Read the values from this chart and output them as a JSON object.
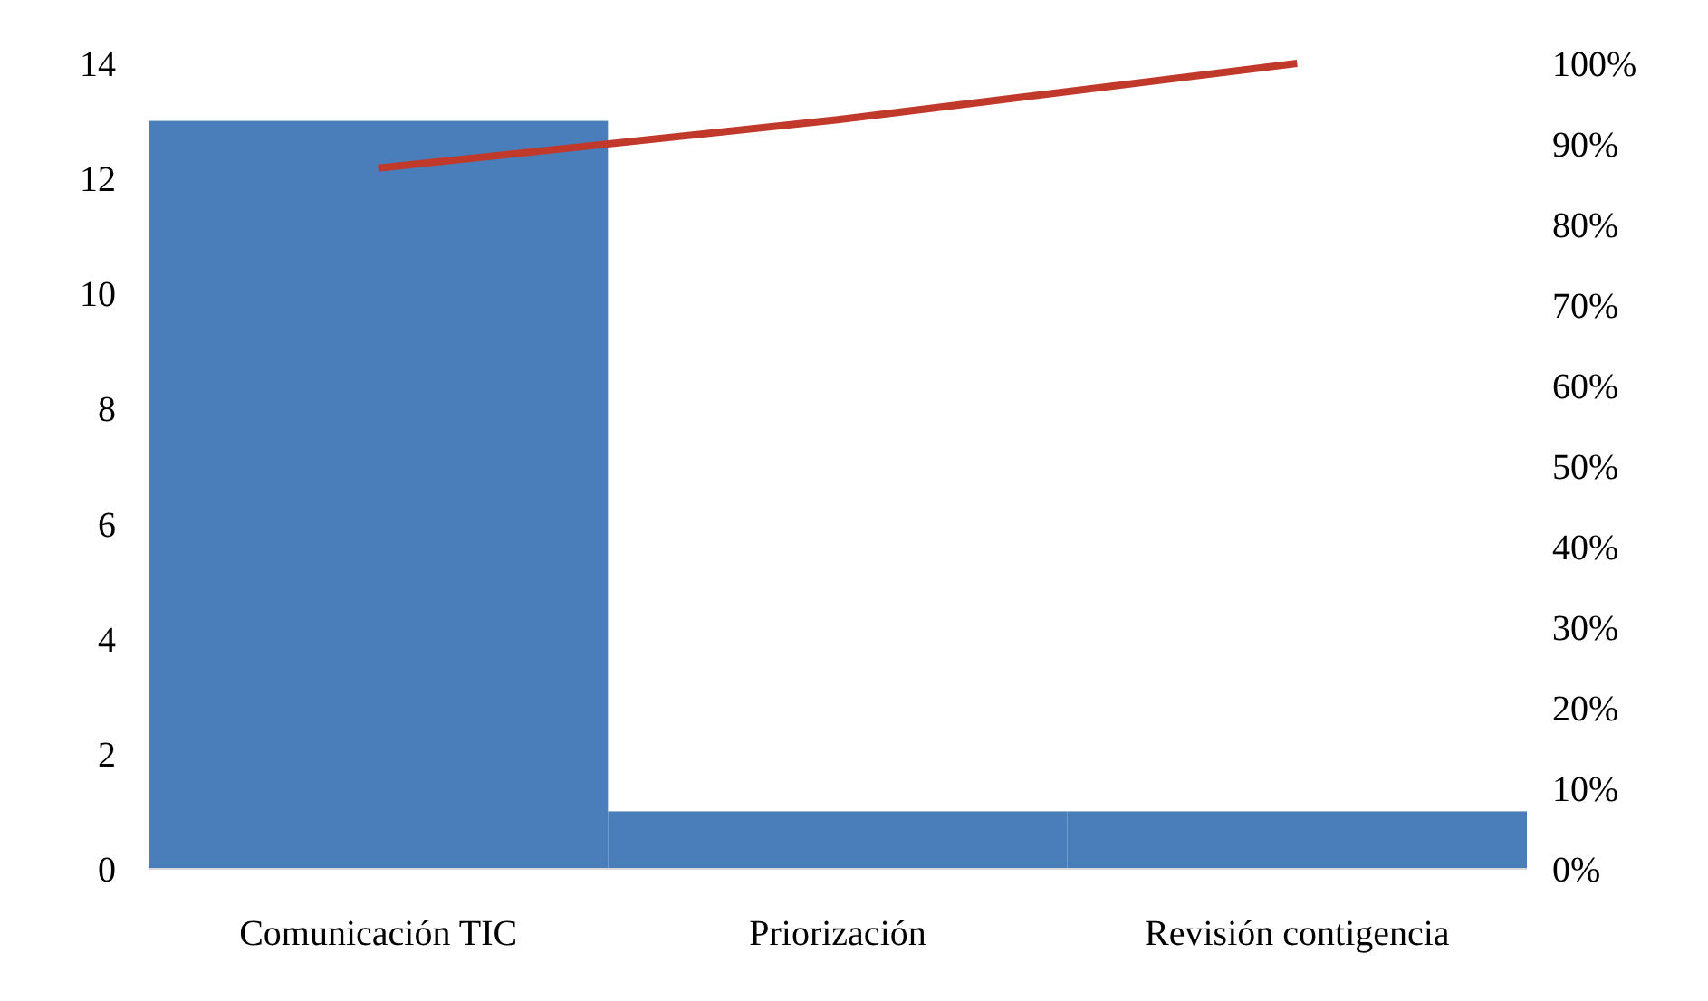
{
  "chart_data": {
    "type": "bar",
    "categories": [
      "Comunicación TIC",
      "Priorización",
      "Revisión contigencia"
    ],
    "series": [
      {
        "color": "#4a7ebb",
        "values": [
          13,
          1,
          1
        ]
      },
      {
        "type": "line",
        "axis": "y2",
        "color": "#c0392b",
        "values": [
          87,
          93,
          100
        ]
      }
    ],
    "ylim": [
      0,
      14
    ],
    "yticks": [
      0,
      2,
      4,
      6,
      8,
      10,
      12,
      14
    ],
    "y2lim": [
      0,
      100
    ],
    "y2ticks": [
      {
        "value": 0,
        "label": "0%"
      },
      {
        "value": 10,
        "label": "10%"
      },
      {
        "value": 20,
        "label": "20%"
      },
      {
        "value": 30,
        "label": "30%"
      },
      {
        "value": 40,
        "label": "40%"
      },
      {
        "value": 50,
        "label": "50%"
      },
      {
        "value": 60,
        "label": "60%"
      },
      {
        "value": 70,
        "label": "70%"
      },
      {
        "value": 80,
        "label": "80%"
      },
      {
        "value": 90,
        "label": "90%"
      },
      {
        "value": 100,
        "label": "100%"
      }
    ],
    "grid": false,
    "marker": "none",
    "line_style": "solid"
  }
}
